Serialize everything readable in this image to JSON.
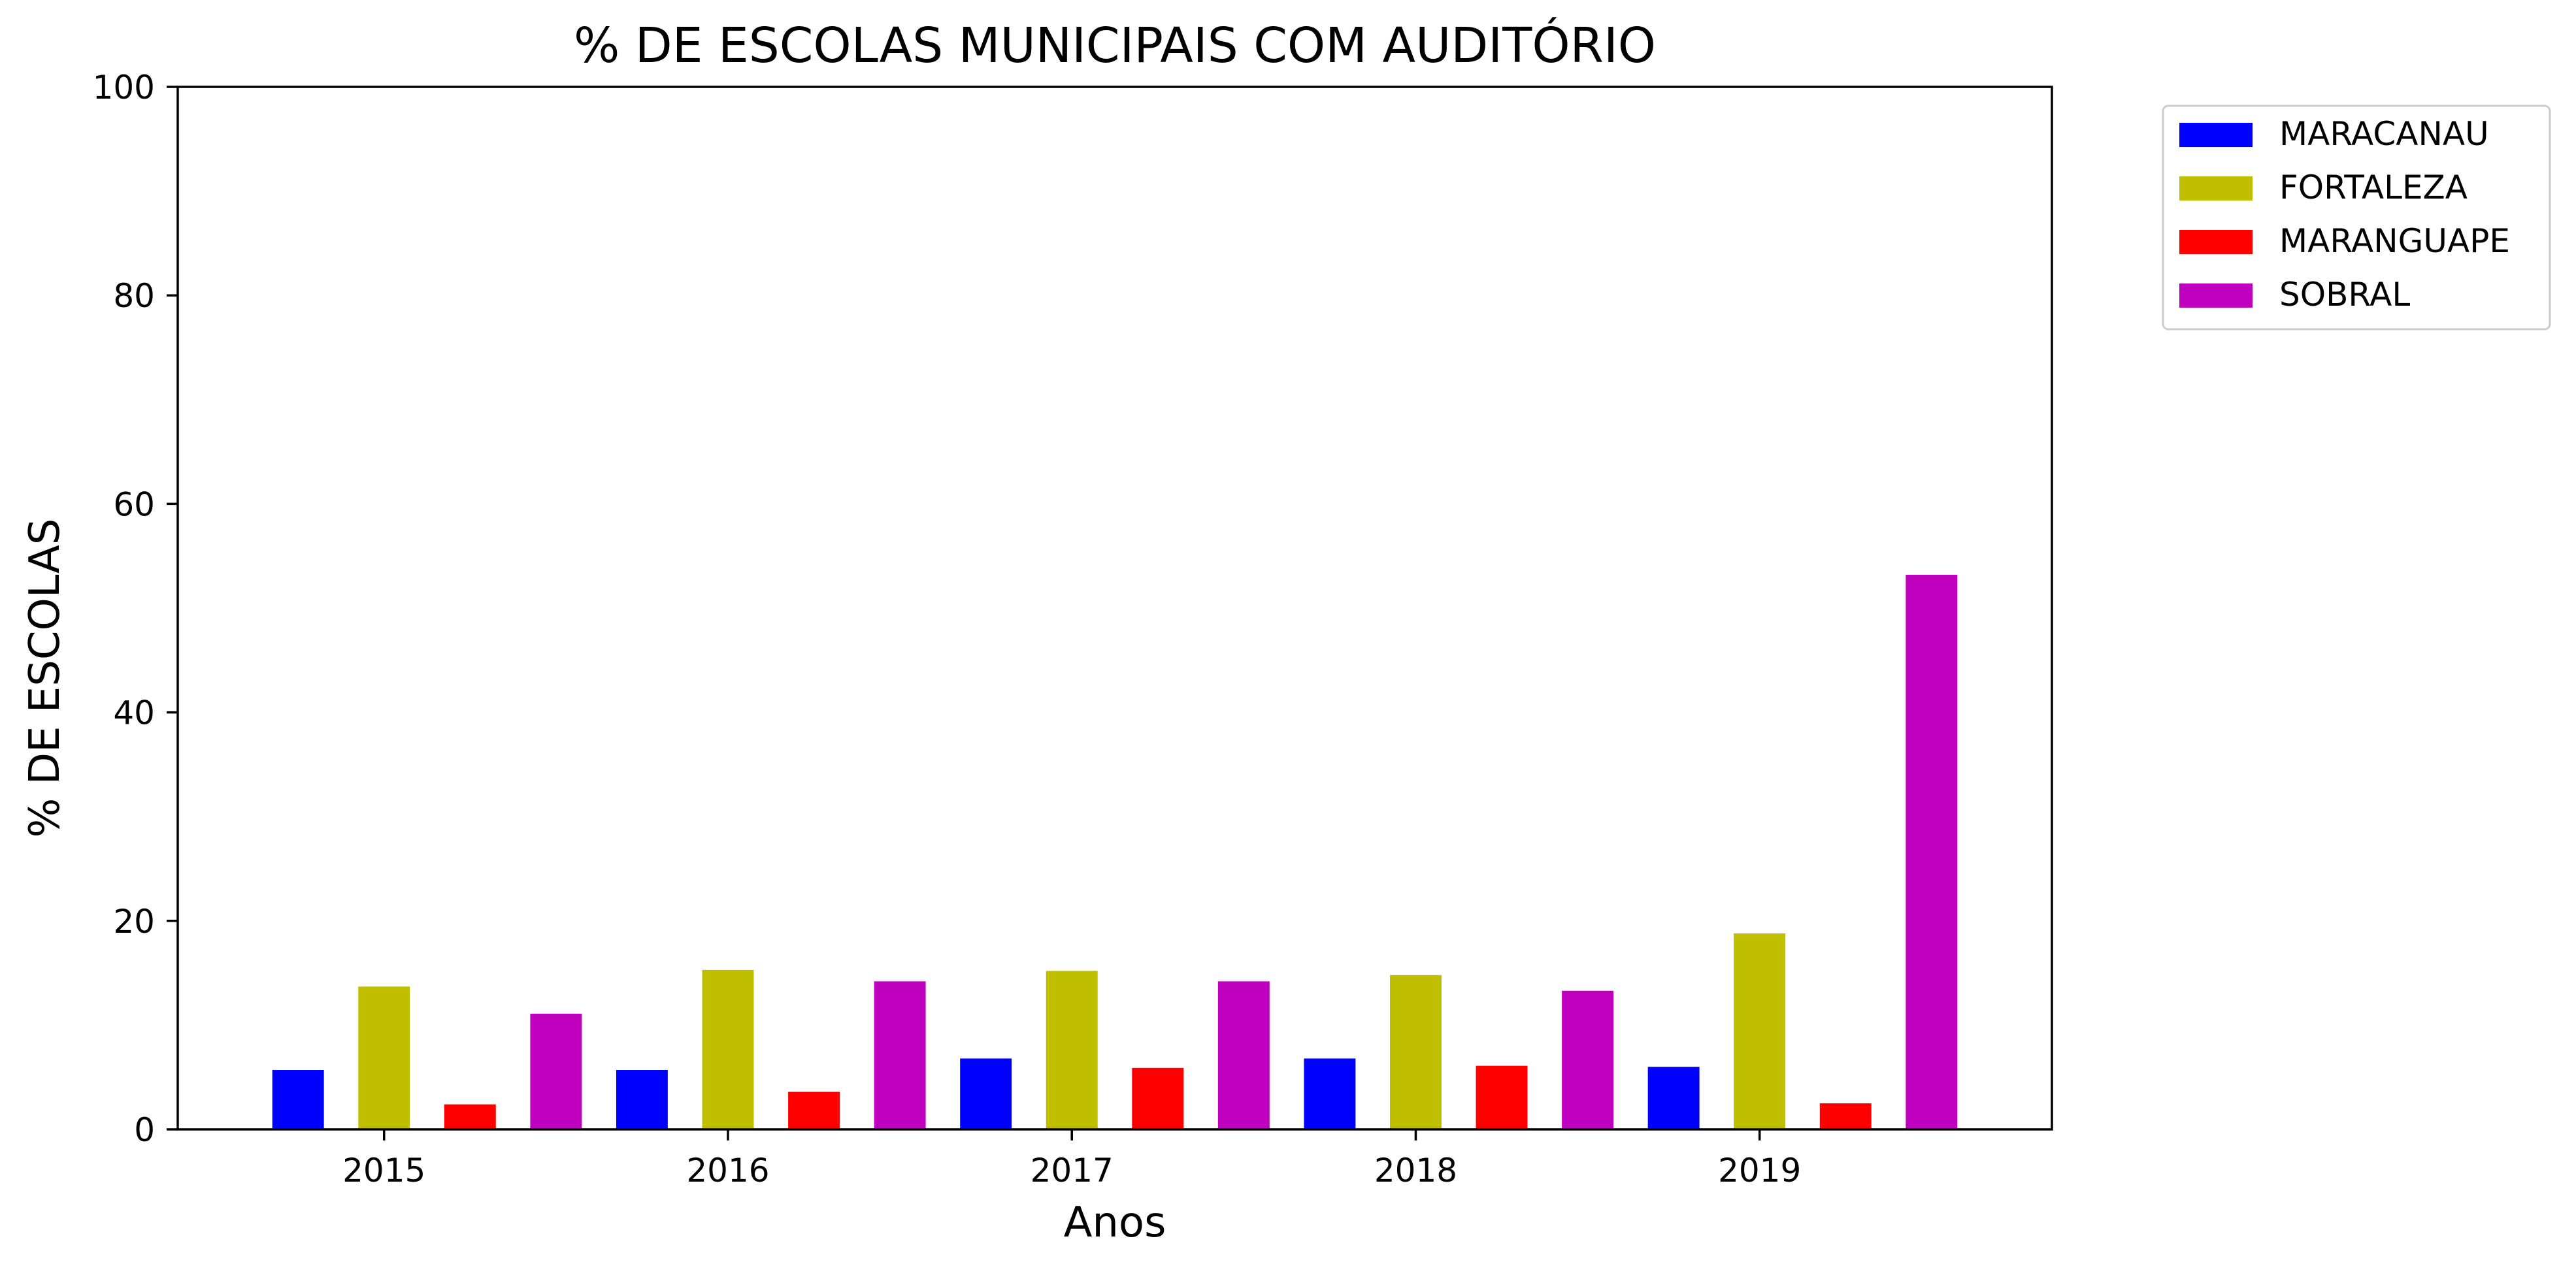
{
  "chart_data": {
    "type": "bar",
    "title": "% DE ESCOLAS MUNICIPAIS COM AUDITÓRIO",
    "xlabel": "Anos",
    "ylabel": "% DE ESCOLAS",
    "categories": [
      "2015",
      "2016",
      "2017",
      "2018",
      "2019"
    ],
    "ylim": [
      0,
      100
    ],
    "yticks": [
      "0",
      "20",
      "40",
      "60",
      "80",
      "100"
    ],
    "grid": false,
    "legend_position": "outside-top-right",
    "series": [
      {
        "name": "MARACANAU",
        "color": "#0000ff",
        "values": [
          5.7,
          5.7,
          6.8,
          6.8,
          6.0
        ]
      },
      {
        "name": "FORTALEZA",
        "color": "#bfbf00",
        "values": [
          13.7,
          15.3,
          15.2,
          14.8,
          18.8
        ]
      },
      {
        "name": "MARANGUAPE",
        "color": "#ff0000",
        "values": [
          2.4,
          3.6,
          5.9,
          6.1,
          2.5
        ]
      },
      {
        "name": "SOBRAL",
        "color": "#bf00bf",
        "values": [
          11.1,
          14.2,
          14.2,
          13.3,
          53.2
        ]
      }
    ]
  }
}
